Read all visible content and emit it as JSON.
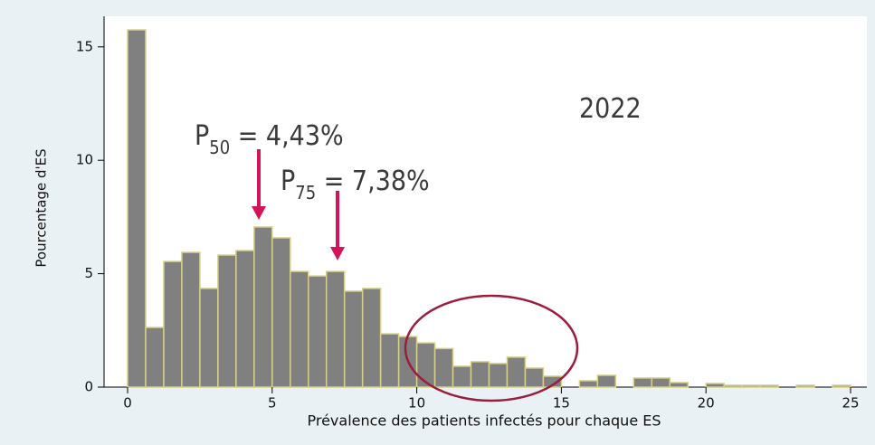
{
  "chart_data": {
    "type": "histogram",
    "xlabel": "Prévalence des patients infectés pour chaque ES",
    "ylabel": "Pourcentage d'ES",
    "bins": [
      0,
      0.625,
      1.25,
      1.875,
      2.5,
      3.125,
      3.75,
      4.375,
      5,
      5.625,
      6.25,
      6.875,
      7.5,
      8.125,
      8.75,
      9.375,
      10,
      10.625,
      11.25,
      11.875,
      12.5,
      13.125,
      13.75,
      14.375,
      15,
      15.625,
      16.25,
      16.875,
      17.5,
      18.125,
      18.75,
      19.375,
      20,
      20.625,
      21.25,
      21.875,
      22.5,
      23.125,
      23.75,
      24.375,
      25
    ],
    "values": [
      15.75,
      2.63,
      5.54,
      5.94,
      4.35,
      5.82,
      6.02,
      7.06,
      6.58,
      5.1,
      4.9,
      5.1,
      4.23,
      4.35,
      2.35,
      2.23,
      1.95,
      1.7,
      0.92,
      1.12,
      1.04,
      1.32,
      0.84,
      0.48,
      0,
      0.28,
      0.52,
      0,
      0.4,
      0.4,
      0.2,
      0,
      0.16,
      0.08,
      0.08,
      0.08,
      0,
      0.08,
      0,
      0.08
    ],
    "color": "#808080",
    "edge_color": "#d6d08a",
    "xlim": [
      0,
      25
    ],
    "xticks": [
      0,
      5,
      10,
      15,
      20,
      25
    ],
    "ylim": [
      0,
      15.75
    ],
    "yticks": [
      0,
      5,
      10,
      15
    ],
    "annotations": [
      {
        "text": "2022"
      },
      {
        "parts": [
          "P",
          "50",
          " = 4,43%"
        ]
      },
      {
        "parts": [
          "P",
          "75",
          " = 7,38%"
        ]
      }
    ]
  }
}
